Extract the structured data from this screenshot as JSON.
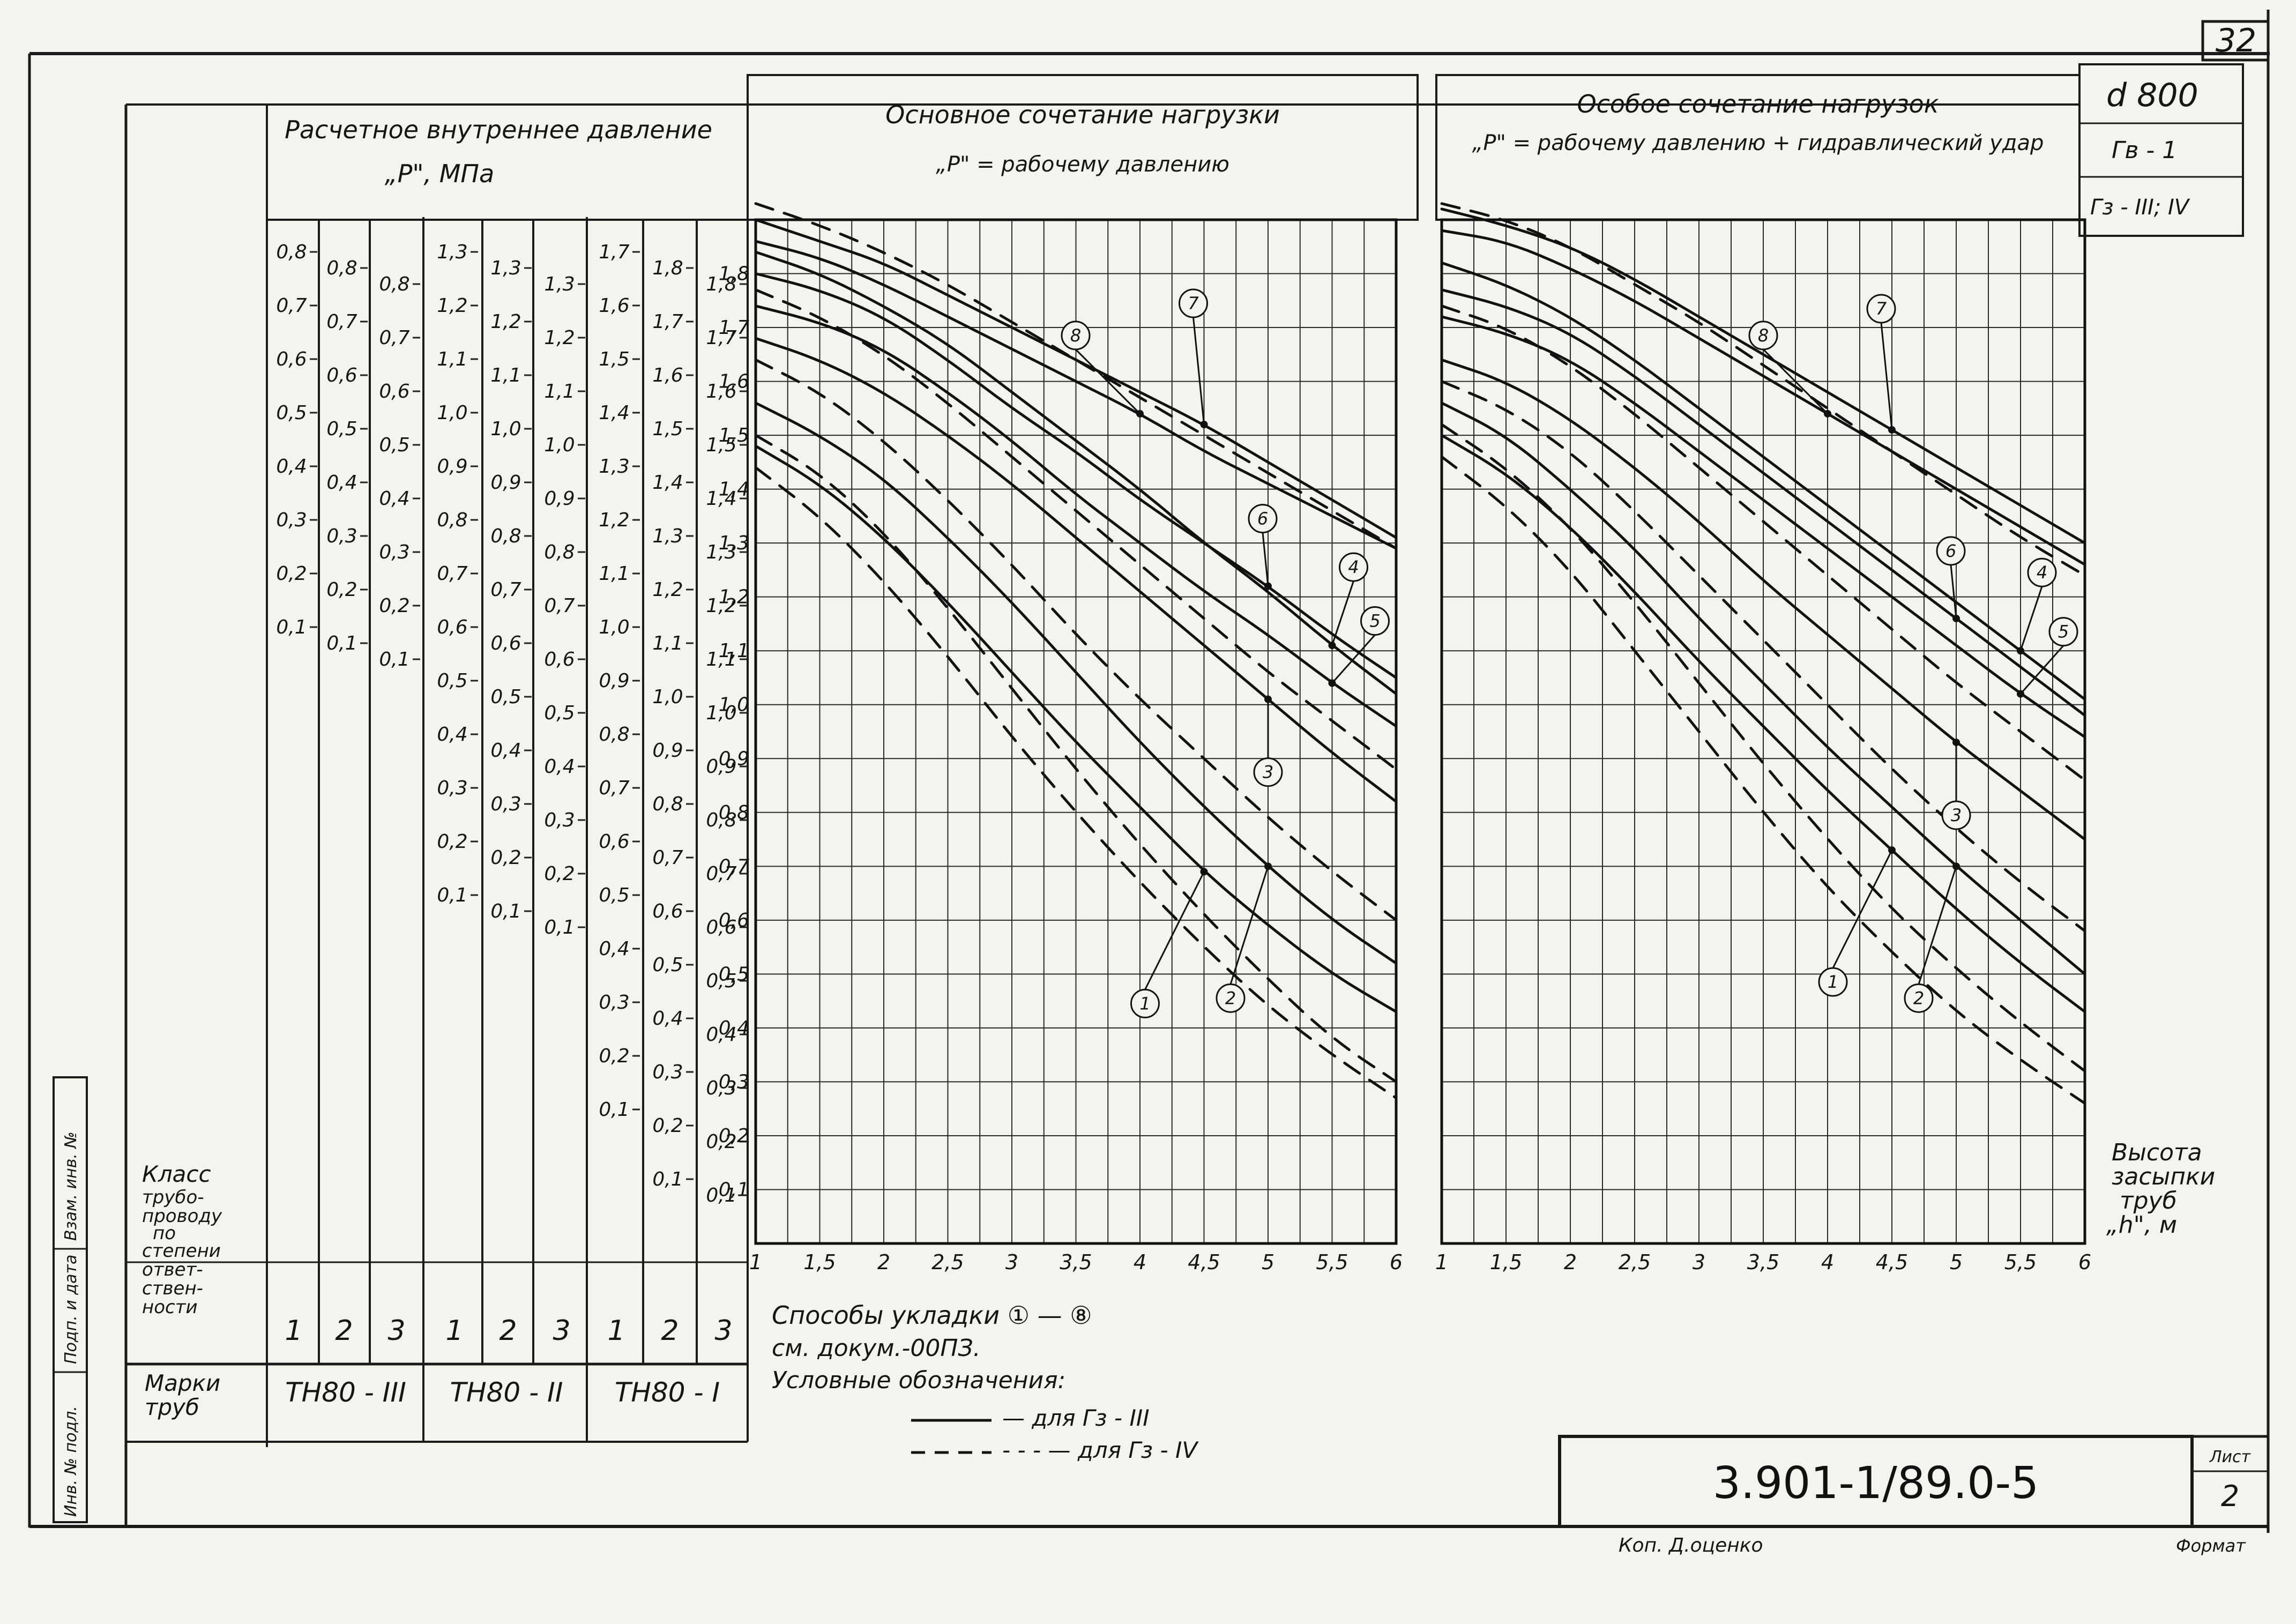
{
  "sheet": {
    "page_number": "32",
    "diameter": "d 800",
    "spec_gv": "Гв - 1",
    "spec_gz": "Гз - III; IV",
    "doc_code": "3.901-1/89.0-5",
    "sheet_label": "Лист",
    "sheet_no": "2",
    "copied_by": "Коп. Д.оценко",
    "format_label": "Формат",
    "side_stamp": [
      "Инв. № подл.",
      "Подп. и дата",
      "Взам. инв. №"
    ]
  },
  "left_table": {
    "pressure_title": "Расчетное внутреннее давление",
    "pressure_subtitle": "„P\", МПа",
    "class_label": [
      "Класс",
      "трубо-",
      "проводу",
      "по",
      "степени",
      "ответ-",
      "ствен-",
      "ности"
    ],
    "marks_label": [
      "Марки",
      "труб"
    ],
    "class_values": [
      "1",
      "2",
      "3",
      "1",
      "2",
      "3",
      "1",
      "2",
      "3"
    ],
    "marks": [
      "ТН80 - III",
      "ТН80 - II",
      "ТН80 - I"
    ],
    "columns": [
      [
        "0,8",
        "0,7",
        "0,6",
        "0,5",
        "0,4",
        "0,3",
        "0,2",
        "0,1"
      ],
      [
        "0,8",
        "0,7",
        "0,6",
        "0,5",
        "0,4",
        "0,3",
        "0,2",
        "0,1"
      ],
      [
        "0,8",
        "0,7",
        "0,6",
        "0,5",
        "0,4",
        "0,3",
        "0,2",
        "0,1"
      ],
      [
        "1,3",
        "1,2",
        "1,1",
        "1,0",
        "0,9",
        "0,8",
        "0,7",
        "0,6",
        "0,5",
        "0,4",
        "0,3",
        "0,2",
        "0,1"
      ],
      [
        "1,3",
        "1,2",
        "1,1",
        "1,0",
        "0,9",
        "0,8",
        "0,7",
        "0,6",
        "0,5",
        "0,4",
        "0,3",
        "0,2",
        "0,1"
      ],
      [
        "1,3",
        "1,2",
        "1,1",
        "1,0",
        "0,9",
        "0,8",
        "0,7",
        "0,6",
        "0,5",
        "0,4",
        "0,3",
        "0,2",
        "0,1"
      ],
      [
        "1,7",
        "1,6",
        "1,5",
        "1,4",
        "1,3",
        "1,2",
        "1,1",
        "1,0",
        "0,9",
        "0,8",
        "0,7",
        "0,6",
        "0,5",
        "0,4",
        "0,3",
        "0,2",
        "0,1"
      ],
      [
        "1,8",
        "1,7",
        "1,6",
        "1,5",
        "1,4",
        "1,3",
        "1,2",
        "1,1",
        "1,0",
        "0,9",
        "0,8",
        "0,7",
        "0,6",
        "0,5",
        "0,4",
        "0,3",
        "0,2",
        "0,1"
      ],
      [
        "1,8",
        "1,7",
        "1,6",
        "1,5",
        "1,4",
        "1,3",
        "1,2",
        "1,1",
        "1,0",
        "0,9",
        "0,8",
        "0,7",
        "0,6",
        "0,5",
        "0,4",
        "0,3",
        "0,2",
        "0,1"
      ]
    ]
  },
  "notes": {
    "methods": "Способы укладки ① — ⑧",
    "see_doc": "см. докум.-00ПЗ.",
    "legend_title": "Условные обозначения:",
    "solid": "— для Гз - III",
    "dashed": "- - - — для Гз - IV"
  },
  "chart_data": [
    {
      "type": "line",
      "title": "Основное сочетание нагрузки",
      "subtitle": "„P\" = рабочему давлению",
      "xlabel": "Высота засыпки труб „h\", м",
      "x_tick_labels": [
        "1",
        "1,5",
        "2",
        "2,5",
        "3",
        "3,5",
        "4",
        "4,5",
        "5",
        "5,5",
        "6"
      ],
      "y_tick_labels": [
        "1,8",
        "1,7",
        "1,6",
        "1,5",
        "1,4",
        "1,3",
        "1,2",
        "1,1",
        "1,0",
        "0,9",
        "0,8",
        "0,7",
        "0,6",
        "0,5",
        "0,4",
        "0,3",
        "0,2",
        "0,1"
      ],
      "xlim": [
        1,
        6
      ],
      "ylim": [
        0,
        1.9
      ],
      "grid": true,
      "x": [
        1,
        1.5,
        2,
        2.5,
        3,
        3.5,
        4,
        4.5,
        5,
        5.5,
        6
      ],
      "series": [
        {
          "name": "8",
          "style": "solid",
          "values": [
            1.86,
            1.83,
            1.78,
            1.72,
            1.66,
            1.6,
            1.54,
            1.47,
            1.41,
            1.35,
            1.29
          ]
        },
        {
          "name": "7",
          "style": "solid",
          "values": [
            1.9,
            1.86,
            1.82,
            1.76,
            1.7,
            1.64,
            1.58,
            1.52,
            1.45,
            1.38,
            1.31
          ]
        },
        {
          "name": "6",
          "style": "solid",
          "values": [
            1.8,
            1.77,
            1.72,
            1.64,
            1.55,
            1.47,
            1.38,
            1.3,
            1.22,
            1.13,
            1.05
          ]
        },
        {
          "name": "5",
          "style": "solid",
          "values": [
            1.74,
            1.71,
            1.66,
            1.58,
            1.49,
            1.39,
            1.3,
            1.21,
            1.13,
            1.04,
            0.96
          ]
        },
        {
          "name": "4",
          "style": "solid",
          "values": [
            1.84,
            1.8,
            1.74,
            1.67,
            1.58,
            1.49,
            1.4,
            1.3,
            1.21,
            1.11,
            1.02
          ]
        },
        {
          "name": "3",
          "style": "solid",
          "values": [
            1.68,
            1.64,
            1.58,
            1.5,
            1.41,
            1.31,
            1.21,
            1.11,
            1.01,
            0.91,
            0.82
          ]
        },
        {
          "name": "2",
          "style": "solid",
          "values": [
            1.56,
            1.5,
            1.42,
            1.31,
            1.19,
            1.06,
            0.93,
            0.81,
            0.7,
            0.6,
            0.52
          ]
        },
        {
          "name": "1",
          "style": "solid",
          "values": [
            1.48,
            1.41,
            1.31,
            1.19,
            1.06,
            0.93,
            0.81,
            0.69,
            0.59,
            0.5,
            0.43
          ]
        },
        {
          "name": "8",
          "style": "dashed",
          "values": [
            1.93,
            1.89,
            1.84,
            1.78,
            1.71,
            1.64,
            1.57,
            1.5,
            1.43,
            1.36,
            1.29
          ]
        },
        {
          "name": "6",
          "style": "dashed",
          "values": [
            1.77,
            1.72,
            1.65,
            1.56,
            1.46,
            1.36,
            1.26,
            1.16,
            1.06,
            0.97,
            0.88
          ]
        },
        {
          "name": "3",
          "style": "dashed",
          "values": [
            1.64,
            1.58,
            1.49,
            1.38,
            1.26,
            1.13,
            1.01,
            0.9,
            0.79,
            0.69,
            0.6
          ]
        },
        {
          "name": "2",
          "style": "dashed",
          "values": [
            1.5,
            1.43,
            1.32,
            1.18,
            1.03,
            0.88,
            0.74,
            0.61,
            0.49,
            0.38,
            0.3
          ]
        },
        {
          "name": "1",
          "style": "dashed",
          "values": [
            1.44,
            1.35,
            1.23,
            1.09,
            0.94,
            0.8,
            0.67,
            0.55,
            0.44,
            0.35,
            0.27
          ]
        }
      ]
    },
    {
      "type": "line",
      "title": "Особое сочетание нагрузок",
      "subtitle": "„P\" = рабочему давлению + гидравлический удар",
      "xlabel": "Высота засыпки труб „h\", м",
      "x_tick_labels": [
        "1",
        "1,5",
        "2",
        "2,5",
        "3",
        "3,5",
        "4",
        "4,5",
        "5",
        "5,5",
        "6"
      ],
      "xlim": [
        1,
        6
      ],
      "ylim": [
        0,
        1.9
      ],
      "grid": true,
      "x": [
        1,
        1.5,
        2,
        2.5,
        3,
        3.5,
        4,
        4.5,
        5,
        5.5,
        6
      ],
      "series": [
        {
          "name": "8",
          "style": "solid",
          "values": [
            1.88,
            1.86,
            1.81,
            1.75,
            1.68,
            1.61,
            1.54,
            1.47,
            1.4,
            1.33,
            1.26
          ]
        },
        {
          "name": "7",
          "style": "solid",
          "values": [
            1.92,
            1.89,
            1.85,
            1.79,
            1.72,
            1.65,
            1.58,
            1.51,
            1.44,
            1.37,
            1.3
          ]
        },
        {
          "name": "6",
          "style": "solid",
          "values": [
            1.77,
            1.74,
            1.69,
            1.61,
            1.52,
            1.43,
            1.34,
            1.25,
            1.16,
            1.07,
            0.98
          ]
        },
        {
          "name": "5",
          "style": "solid",
          "values": [
            1.72,
            1.69,
            1.64,
            1.56,
            1.47,
            1.38,
            1.29,
            1.2,
            1.11,
            1.02,
            0.94
          ]
        },
        {
          "name": "4",
          "style": "solid",
          "values": [
            1.82,
            1.78,
            1.72,
            1.64,
            1.55,
            1.46,
            1.37,
            1.28,
            1.19,
            1.1,
            1.01
          ]
        },
        {
          "name": "3",
          "style": "solid",
          "values": [
            1.64,
            1.6,
            1.53,
            1.44,
            1.34,
            1.23,
            1.13,
            1.03,
            0.93,
            0.84,
            0.75
          ]
        },
        {
          "name": "2",
          "style": "solid",
          "values": [
            1.56,
            1.5,
            1.4,
            1.29,
            1.16,
            1.04,
            0.92,
            0.81,
            0.7,
            0.6,
            0.5
          ]
        },
        {
          "name": "1",
          "style": "solid",
          "values": [
            1.5,
            1.43,
            1.33,
            1.21,
            1.08,
            0.96,
            0.84,
            0.73,
            0.62,
            0.52,
            0.43
          ]
        },
        {
          "name": "8",
          "style": "dashed",
          "values": [
            1.93,
            1.9,
            1.85,
            1.78,
            1.71,
            1.63,
            1.55,
            1.47,
            1.39,
            1.31,
            1.24
          ]
        },
        {
          "name": "6",
          "style": "dashed",
          "values": [
            1.74,
            1.7,
            1.63,
            1.54,
            1.44,
            1.34,
            1.24,
            1.14,
            1.04,
            0.95,
            0.86
          ]
        },
        {
          "name": "3",
          "style": "dashed",
          "values": [
            1.6,
            1.55,
            1.47,
            1.36,
            1.24,
            1.12,
            1.0,
            0.88,
            0.77,
            0.67,
            0.58
          ]
        },
        {
          "name": "2",
          "style": "dashed",
          "values": [
            1.52,
            1.44,
            1.33,
            1.19,
            1.04,
            0.89,
            0.75,
            0.62,
            0.51,
            0.41,
            0.32
          ]
        },
        {
          "name": "1",
          "style": "dashed",
          "values": [
            1.46,
            1.37,
            1.25,
            1.1,
            0.95,
            0.8,
            0.66,
            0.54,
            0.43,
            0.34,
            0.26
          ]
        }
      ]
    }
  ]
}
